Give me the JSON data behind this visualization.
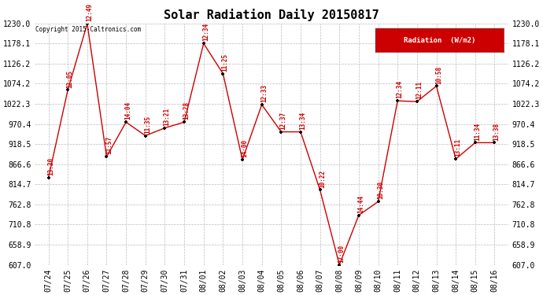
{
  "title": "Solar Radiation Daily 20150817",
  "copyright": "Copyright 2015-Caltronics.com",
  "legend_label": "Radiation  (W/m2)",
  "ylim": [
    607.0,
    1230.0
  ],
  "ytick_values": [
    607.0,
    658.9,
    710.8,
    762.8,
    814.7,
    866.6,
    918.5,
    970.4,
    1022.3,
    1074.2,
    1126.2,
    1178.1,
    1230.0
  ],
  "dates": [
    "07/24",
    "07/25",
    "07/26",
    "07/27",
    "07/28",
    "07/29",
    "07/30",
    "07/31",
    "08/01",
    "08/02",
    "08/03",
    "08/04",
    "08/05",
    "08/06",
    "08/07",
    "08/08",
    "08/09",
    "08/10",
    "08/11",
    "08/12",
    "08/13",
    "08/14",
    "08/15",
    "08/16"
  ],
  "values": [
    831,
    1058,
    1229,
    886,
    975,
    940,
    960,
    975,
    1178,
    1100,
    878,
    1020,
    950,
    950,
    800,
    607,
    735,
    770,
    1030,
    1028,
    1068,
    880,
    922,
    922
  ],
  "time_labels": [
    "13:30",
    "12:05",
    "12:49",
    "11:57",
    "14:04",
    "11:35",
    "13:21",
    "13:28",
    "12:34",
    "11:25",
    "14:00",
    "12:33",
    "12:37",
    "13:34",
    "10:22",
    "17:00",
    "14:44",
    "10:30",
    "12:34",
    "12:11",
    "10:58",
    "13:11",
    "11:34",
    "13:38"
  ],
  "line_color": "#cc0000",
  "marker_color": "#000000",
  "bg_color": "#ffffff",
  "grid_color": "#aaaaaa",
  "title_fontsize": 11,
  "tick_fontsize": 7,
  "label_fontsize": 5.5,
  "legend_bg": "#cc0000",
  "legend_fg": "#ffffff"
}
